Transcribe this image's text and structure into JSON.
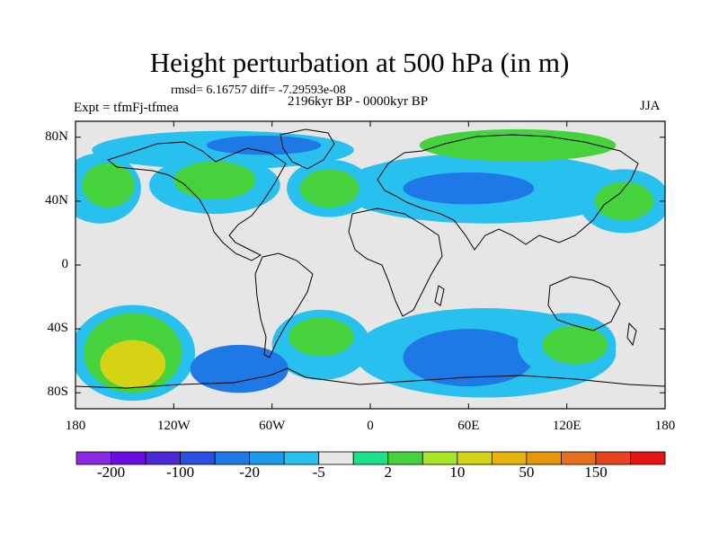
{
  "title": "Height perturbation at 500 hPa (in m)",
  "stats_text": "rmsd= 6.16757 diff= -7.29593e-08",
  "experiment_label": "Expt = tfmFj-tfmea",
  "period_label": "2196kyr BP - 0000kyr BP",
  "season_label": "JJA",
  "map": {
    "projection": "cylindrical-equidistant",
    "lon_range": [
      -180,
      180
    ],
    "lat_range": [
      -90,
      90
    ],
    "lat_ticks": [
      {
        "value": 80,
        "label": "80N"
      },
      {
        "value": 40,
        "label": "40N"
      },
      {
        "value": 0,
        "label": "0"
      },
      {
        "value": -40,
        "label": "40S"
      },
      {
        "value": -80,
        "label": "80S"
      }
    ],
    "lon_ticks": [
      {
        "value": -180,
        "label": "180"
      },
      {
        "value": -120,
        "label": "120W"
      },
      {
        "value": -60,
        "label": "60W"
      },
      {
        "value": 0,
        "label": "0"
      },
      {
        "value": 60,
        "label": "60E"
      },
      {
        "value": 120,
        "label": "120E"
      },
      {
        "value": 180,
        "label": "180"
      }
    ],
    "background_color": "#e6e6e6",
    "coastline_color": "#000000",
    "regions": [
      {
        "name": "pacific-north-low",
        "level": "-5",
        "lon": -165,
        "lat": 48,
        "rlon": 25,
        "rlat": 22
      },
      {
        "name": "pacific-north-high",
        "level": "10",
        "lon": -160,
        "lat": 50,
        "rlon": 16,
        "rlat": 14
      },
      {
        "name": "arctic-band-west",
        "level": "-5",
        "lon": -90,
        "lat": 72,
        "rlon": 80,
        "rlat": 12
      },
      {
        "name": "arctic-core-west",
        "level": "-20",
        "lon": -65,
        "lat": 75,
        "rlon": 35,
        "rlat": 6
      },
      {
        "name": "north-america-ridge",
        "level": "-5",
        "lon": -95,
        "lat": 50,
        "rlon": 40,
        "rlat": 18
      },
      {
        "name": "north-america-core",
        "level": "10",
        "lon": -95,
        "lat": 53,
        "rlon": 25,
        "rlat": 12
      },
      {
        "name": "atlantic-high",
        "level": "10",
        "lon": -25,
        "lat": 48,
        "rlon": 18,
        "rlat": 12
      },
      {
        "name": "atlantic-high-ring",
        "level": "-5",
        "lon": -25,
        "lat": 48,
        "rlon": 26,
        "rlat": 18
      },
      {
        "name": "eurasia-trough",
        "level": "-5",
        "lon": 70,
        "lat": 48,
        "rlon": 90,
        "rlat": 22
      },
      {
        "name": "eurasia-trough-core",
        "level": "-20",
        "lon": 60,
        "lat": 48,
        "rlon": 40,
        "rlat": 10
      },
      {
        "name": "siberia-high",
        "level": "10",
        "lon": 90,
        "lat": 75,
        "rlon": 60,
        "rlat": 10
      },
      {
        "name": "east-asia-high",
        "level": "10",
        "lon": 155,
        "lat": 40,
        "rlon": 18,
        "rlat": 12
      },
      {
        "name": "east-asia-ring",
        "level": "-5",
        "lon": 155,
        "lat": 40,
        "rlon": 28,
        "rlat": 20
      },
      {
        "name": "south-pacific-ring",
        "level": "-5",
        "lon": -145,
        "lat": -55,
        "rlon": 38,
        "rlat": 30
      },
      {
        "name": "south-pacific-band",
        "level": "10",
        "lon": -145,
        "lat": -55,
        "rlon": 30,
        "rlat": 25
      },
      {
        "name": "south-pacific-high",
        "level": "50",
        "lon": -145,
        "lat": -62,
        "rlon": 20,
        "rlat": 15
      },
      {
        "name": "south-america-low",
        "level": "-20",
        "lon": -80,
        "lat": -65,
        "rlon": 30,
        "rlat": 15
      },
      {
        "name": "south-atlantic-ring",
        "level": "-5",
        "lon": -30,
        "lat": -50,
        "rlon": 30,
        "rlat": 22
      },
      {
        "name": "south-atlantic-high",
        "level": "10",
        "lon": -30,
        "lat": -45,
        "rlon": 20,
        "rlat": 12
      },
      {
        "name": "southern-ocean-low",
        "level": "-5",
        "lon": 70,
        "lat": -55,
        "rlon": 80,
        "rlat": 28
      },
      {
        "name": "southern-ocean-core",
        "level": "-20",
        "lon": 60,
        "lat": -58,
        "rlon": 40,
        "rlat": 18
      },
      {
        "name": "australia-south-high",
        "level": "10",
        "lon": 125,
        "lat": -50,
        "rlon": 20,
        "rlat": 12
      },
      {
        "name": "australia-south-ring",
        "level": "-5",
        "lon": 120,
        "lat": -50,
        "rlon": 30,
        "rlat": 20
      }
    ]
  },
  "colorbar": {
    "colors": [
      "#8a2be2",
      "#6a0de0",
      "#4b28d6",
      "#2b4fe0",
      "#1e78e6",
      "#1c9aec",
      "#28c0ee",
      "#e6e6e6",
      "#1ee08a",
      "#46d23c",
      "#a6e628",
      "#d6d214",
      "#e6b40a",
      "#e6960a",
      "#e6701e",
      "#e6421e",
      "#e61414"
    ],
    "labels": [
      "-200",
      "-100",
      "-20",
      "-5",
      "2",
      "10",
      "50",
      "150"
    ],
    "level_colors": {
      "-20": "#1e78e6",
      "-5": "#28c0ee",
      "10": "#46d23c",
      "50": "#d6d214"
    }
  }
}
